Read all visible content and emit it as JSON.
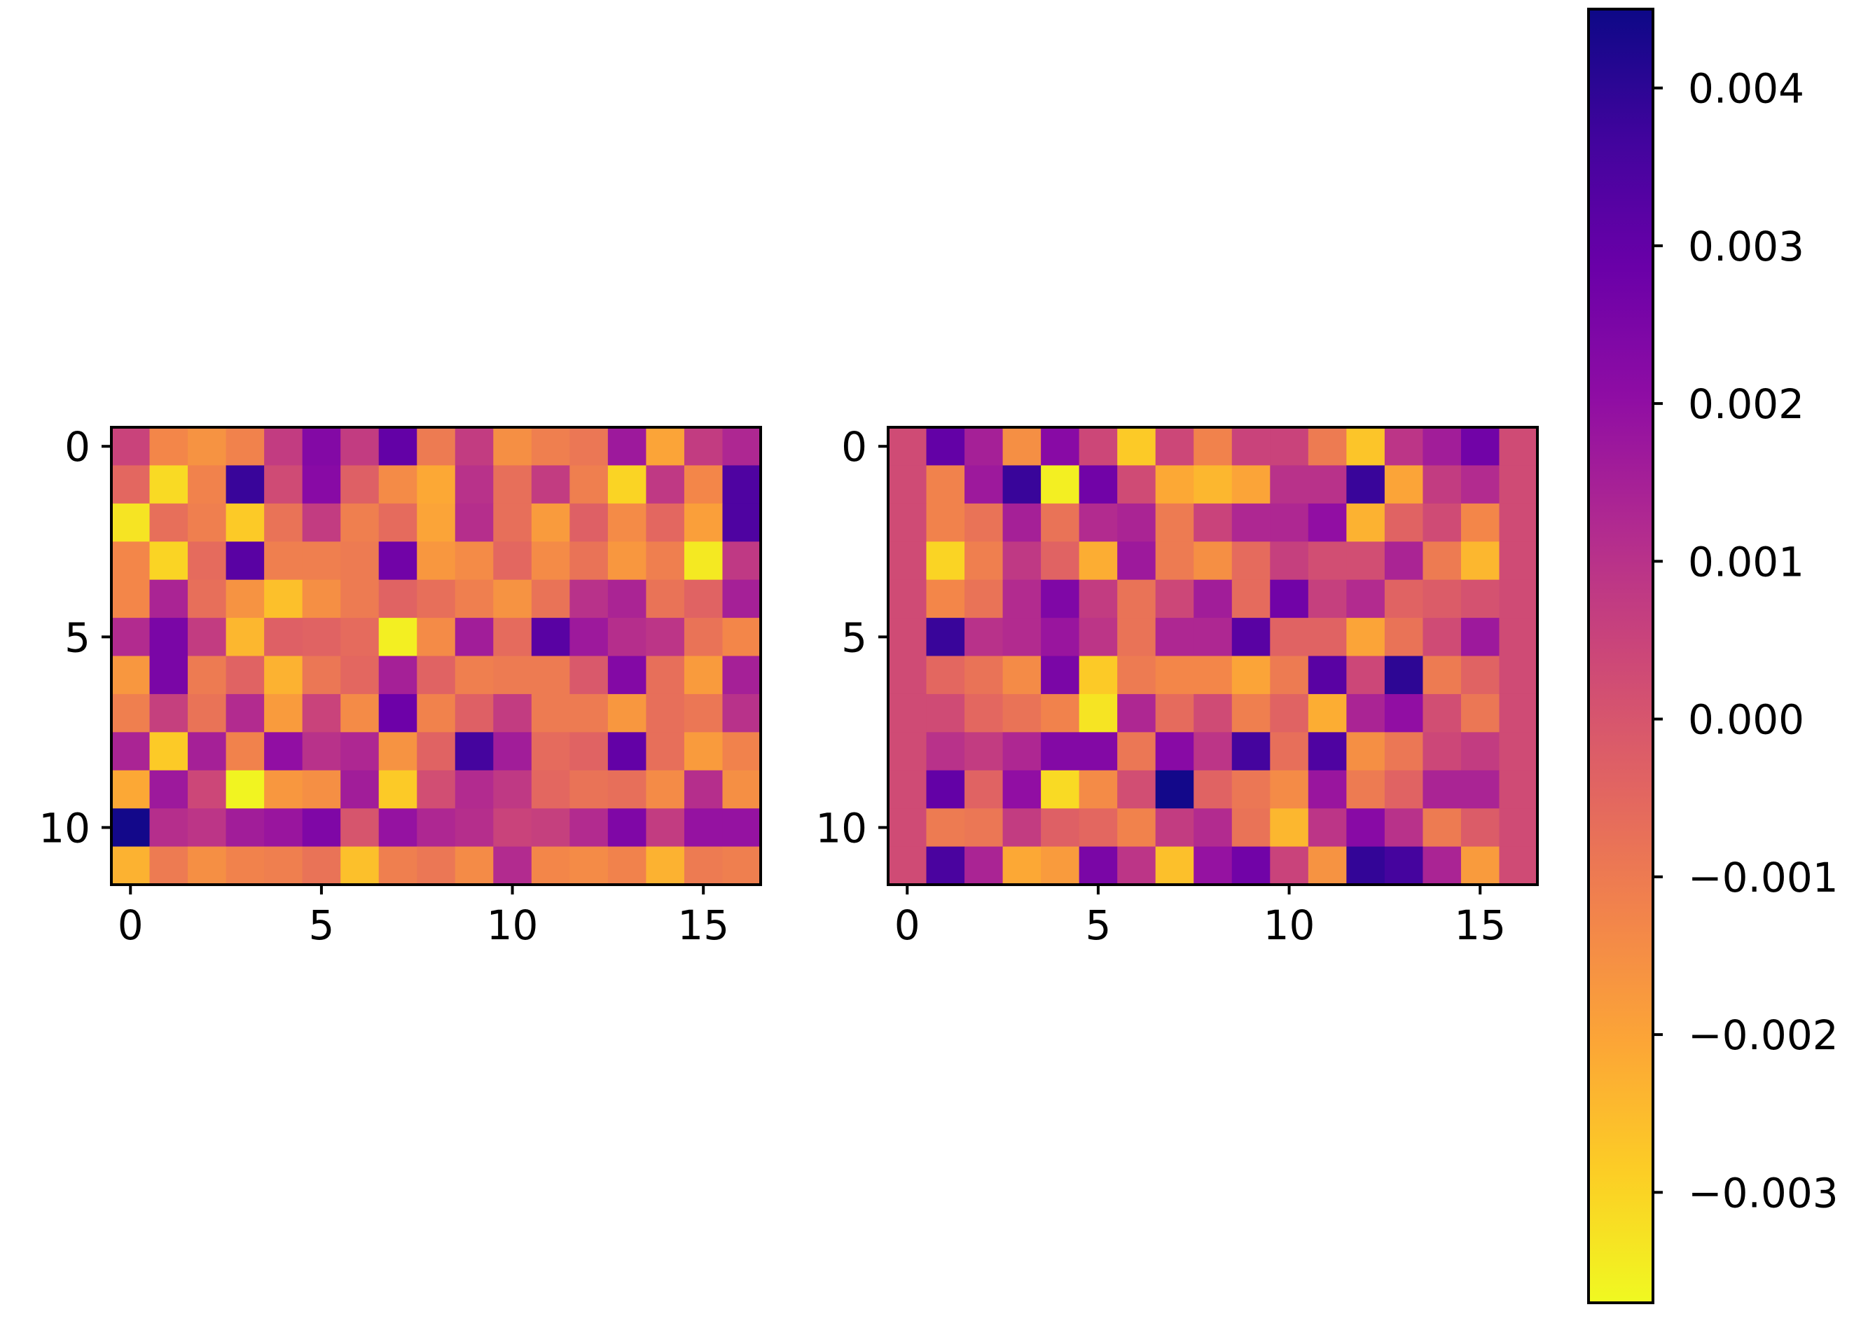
{
  "chart_data": [
    {
      "type": "heatmap",
      "title": "",
      "xlabel": "",
      "ylabel": "",
      "rows": 12,
      "cols": 17,
      "x_ticks": [
        "0",
        "5",
        "10",
        "15"
      ],
      "y_ticks": [
        "0",
        "5",
        "10"
      ],
      "values": [
        [
          0.0005,
          -0.0013,
          -0.0016,
          -0.0012,
          0.0007,
          0.0023,
          0.0007,
          0.003,
          -0.001,
          0.0007,
          -0.0015,
          -0.0011,
          -0.0009,
          0.0017,
          -0.002,
          0.0007,
          0.0013
        ],
        [
          -0.0005,
          -0.0031,
          -0.0012,
          0.0038,
          0.0003,
          0.0022,
          -0.0003,
          -0.0014,
          -0.0021,
          0.001,
          -0.0007,
          0.0007,
          -0.0011,
          -0.003,
          0.0008,
          -0.0013,
          0.0034
        ],
        [
          -0.0033,
          -0.0007,
          -0.0011,
          -0.0028,
          -0.0008,
          0.0007,
          -0.0011,
          -0.0006,
          -0.002,
          0.0011,
          -0.0007,
          -0.0018,
          -0.0003,
          -0.0014,
          -0.0005,
          -0.0019,
          0.0034
        ],
        [
          -0.0013,
          -0.003,
          -0.0006,
          0.0032,
          -0.0011,
          -0.0011,
          -0.001,
          0.0027,
          -0.0017,
          -0.0014,
          -0.0005,
          -0.0014,
          -0.0008,
          -0.0017,
          -0.0011,
          -0.0034,
          0.0008
        ],
        [
          -0.0013,
          0.0014,
          -0.0007,
          -0.0016,
          -0.0026,
          -0.0015,
          -0.001,
          -0.0004,
          -0.0007,
          -0.0011,
          -0.0016,
          -0.0008,
          0.001,
          0.0014,
          -0.0008,
          -0.0004,
          0.0015
        ],
        [
          0.0012,
          0.0025,
          0.0007,
          -0.0024,
          -0.0003,
          -0.0004,
          -0.0006,
          -0.0035,
          -0.0014,
          0.0016,
          -0.0006,
          0.0032,
          0.0017,
          0.0011,
          0.0009,
          -0.0008,
          -0.0013
        ],
        [
          -0.0017,
          0.0025,
          -0.001,
          -0.0004,
          -0.0023,
          -0.0009,
          -0.0005,
          0.0015,
          -0.0004,
          -0.0011,
          -0.001,
          -0.001,
          -0.0001,
          0.0023,
          -0.0007,
          -0.0018,
          0.0015
        ],
        [
          -0.0011,
          0.0006,
          -0.0008,
          0.0012,
          -0.0018,
          0.0005,
          -0.0014,
          0.0028,
          -0.0012,
          -0.0003,
          0.0007,
          -0.001,
          -0.001,
          -0.0017,
          -0.0007,
          -0.0009,
          0.001
        ],
        [
          0.0014,
          -0.0028,
          0.0015,
          -0.0012,
          0.002,
          0.001,
          0.0013,
          -0.0016,
          -0.0004,
          0.0036,
          0.0016,
          -0.0006,
          -0.0004,
          0.003,
          -0.0007,
          -0.0018,
          -0.0012
        ],
        [
          -0.0021,
          0.0017,
          0.0004,
          -0.0036,
          -0.0017,
          -0.0015,
          0.0016,
          -0.0028,
          0.0002,
          0.0012,
          0.0008,
          -0.0005,
          -0.0008,
          -0.0007,
          -0.0014,
          0.0011,
          -0.0015
        ],
        [
          0.0044,
          0.0011,
          0.0009,
          0.0016,
          0.0018,
          0.0024,
          0.0,
          0.0019,
          0.0013,
          0.0011,
          0.0005,
          0.0006,
          0.0012,
          0.0024,
          0.0007,
          0.0019,
          0.0019
        ],
        [
          -0.0023,
          -0.001,
          -0.0015,
          -0.0012,
          -0.0011,
          -0.0008,
          -0.0026,
          -0.0011,
          -0.0009,
          -0.0014,
          0.0012,
          -0.0013,
          -0.0014,
          -0.0012,
          -0.0023,
          -0.001,
          -0.0011
        ]
      ]
    },
    {
      "type": "heatmap",
      "title": "",
      "xlabel": "",
      "ylabel": "",
      "rows": 12,
      "cols": 17,
      "x_ticks": [
        "0",
        "5",
        "10",
        "15"
      ],
      "y_ticks": [
        "0",
        "5",
        "10"
      ],
      "values": [
        [
          0.0003,
          0.003,
          0.0015,
          -0.0015,
          0.0022,
          0.0004,
          -0.0028,
          0.0004,
          -0.0012,
          0.0005,
          0.0005,
          -0.001,
          -0.0027,
          0.0009,
          0.0016,
          0.0027,
          0.0003
        ],
        [
          0.0003,
          -0.0012,
          0.0017,
          0.0038,
          -0.0035,
          0.0027,
          0.0003,
          -0.0021,
          -0.0024,
          -0.002,
          0.001,
          0.001,
          0.0038,
          -0.002,
          0.0007,
          0.0012,
          0.0003
        ],
        [
          0.0003,
          -0.0012,
          -0.0008,
          0.0015,
          -0.0008,
          0.0012,
          0.0014,
          -0.001,
          0.0005,
          0.0013,
          0.0013,
          0.002,
          -0.0023,
          -0.0004,
          0.0003,
          -0.0013,
          0.0003
        ],
        [
          0.0003,
          -0.003,
          -0.0011,
          0.0008,
          -0.0004,
          -0.0022,
          0.0017,
          -0.001,
          -0.0015,
          -0.0006,
          0.0006,
          0.0002,
          0.0002,
          0.0014,
          -0.001,
          -0.0024,
          0.0003
        ],
        [
          0.0003,
          -0.0013,
          -0.0008,
          0.0012,
          0.0024,
          0.0007,
          -0.0008,
          0.0004,
          0.0016,
          -0.0006,
          0.0027,
          0.0006,
          0.0012,
          -0.0004,
          -0.0002,
          0.0001,
          0.0003
        ],
        [
          0.0003,
          0.0038,
          0.001,
          0.0012,
          0.0018,
          0.0009,
          -0.0008,
          0.0013,
          0.0013,
          0.0032,
          -0.0004,
          -0.0004,
          -0.002,
          -0.0008,
          0.0003,
          0.0017,
          0.0003
        ],
        [
          0.0003,
          -0.0005,
          -0.0008,
          -0.0014,
          0.0025,
          -0.0028,
          -0.001,
          -0.0013,
          -0.0013,
          -0.002,
          -0.001,
          0.0032,
          0.0004,
          0.004,
          -0.001,
          -0.0004,
          0.0003
        ],
        [
          0.0003,
          0.0003,
          -0.0005,
          -0.0008,
          -0.0012,
          -0.0033,
          0.0013,
          -0.0006,
          0.0003,
          -0.0011,
          -0.0004,
          -0.0022,
          0.0014,
          0.002,
          0.0002,
          -0.0009,
          0.0003
        ],
        [
          0.0003,
          0.001,
          0.0007,
          0.0013,
          0.0023,
          0.0023,
          -0.0009,
          0.0022,
          0.0009,
          0.0036,
          -0.0007,
          0.0034,
          -0.0015,
          -0.0009,
          0.0004,
          0.0007,
          0.0003
        ],
        [
          0.0003,
          0.003,
          -0.0004,
          0.002,
          -0.0031,
          -0.0014,
          0.0002,
          0.0044,
          -0.0004,
          -0.0009,
          -0.0014,
          0.0018,
          -0.001,
          -0.0004,
          0.0014,
          0.0014,
          0.0003
        ],
        [
          0.0003,
          -0.001,
          -0.0009,
          0.0007,
          -0.0003,
          -0.0005,
          -0.0012,
          0.0007,
          0.0012,
          -0.0008,
          -0.0024,
          0.0009,
          0.0022,
          0.001,
          -0.001,
          -0.0002,
          0.0003
        ],
        [
          0.0003,
          0.0035,
          0.0014,
          -0.0021,
          -0.0018,
          0.0025,
          0.0009,
          -0.0026,
          0.0019,
          0.0027,
          0.0005,
          -0.0016,
          0.0039,
          0.0036,
          0.0014,
          -0.0018,
          0.0003
        ]
      ]
    }
  ],
  "colorbar": {
    "colormap": "plasma",
    "vmin": -0.0037,
    "vmax": 0.0045,
    "ticks": [
      {
        "value": 0.004,
        "label": "0.004"
      },
      {
        "value": 0.003,
        "label": "0.003"
      },
      {
        "value": 0.002,
        "label": "0.002"
      },
      {
        "value": 0.001,
        "label": "0.001"
      },
      {
        "value": 0.0,
        "label": "0.000"
      },
      {
        "value": -0.001,
        "label": "−0.001"
      },
      {
        "value": -0.002,
        "label": "−0.002"
      },
      {
        "value": -0.003,
        "label": "−0.003"
      }
    ]
  }
}
